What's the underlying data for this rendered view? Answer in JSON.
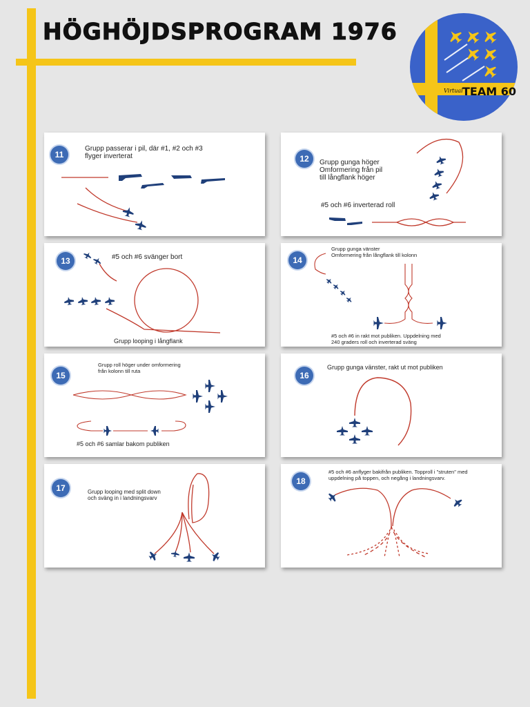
{
  "header": {
    "title": "HÖGHÖJDSPROGRAM 1976",
    "logo_small_text": "Virtual",
    "logo_big_text": "TEAM 60"
  },
  "colors": {
    "accent_yellow": "#f5c518",
    "logo_blue": "#3a62c9",
    "badge_blue": "#3d6bb5",
    "aircraft_blue": "#1f3f7a",
    "path_red": "#c0392b",
    "background": "#e6e6e6"
  },
  "cards": [
    {
      "num": "11",
      "captions": [
        "Grupp passerar i pil, där #1, #2 och #3\nflyger inverterat"
      ]
    },
    {
      "num": "12",
      "captions": [
        "Grupp gunga höger\nOmformering från pil\ntill långflank höger",
        "#5 och #6 inverterad roll"
      ]
    },
    {
      "num": "13",
      "captions": [
        "#5 och #6 svänger bort",
        "Grupp looping i långflank"
      ]
    },
    {
      "num": "14",
      "captions": [
        "Grupp gunga vänster\nOmformering från långflank till kolonn",
        "#5 och #6 in rakt mot publiken.  Uppdelning med\n240 graders roll och inverterad sväng"
      ]
    },
    {
      "num": "15",
      "captions": [
        "Grupp roll höger under omformering\nfrån kolonn till ruta",
        "#5 och #6 samlar bakom publiken"
      ]
    },
    {
      "num": "16",
      "captions": [
        "Grupp gunga vänster, rakt ut mot publiken"
      ]
    },
    {
      "num": "17",
      "captions": [
        "Grupp looping med split down\noch sväng in i landningsvarv"
      ]
    },
    {
      "num": "18",
      "captions": [
        "#5 och #6 anflyger bakifrån publiken. Topproll i \"struten\" med\nuppdelning på toppen, och negång i landningsvarv."
      ]
    }
  ]
}
